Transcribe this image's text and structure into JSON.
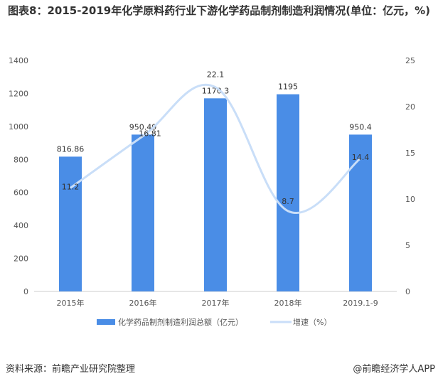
{
  "chart_data": {
    "type": "bar+line",
    "title": "图表8：2015-2019年化学原料药行业下游化学药品制剂制造利润情况(单位：亿元，%)",
    "categories": [
      "2015年",
      "2016年",
      "2017年",
      "2018年",
      "2019.1-9"
    ],
    "series": [
      {
        "name": "化学药品制剂制造利润总额（亿元）",
        "type": "bar",
        "axis": "left",
        "values": [
          816.86,
          950.49,
          1170.3,
          1195,
          950.4
        ],
        "labels": [
          "816.86",
          "950.49",
          "1170.3",
          "1195",
          "950.4"
        ],
        "color": "#4a8de6"
      },
      {
        "name": "增速（%）",
        "type": "line",
        "axis": "right",
        "values": [
          11.2,
          16.81,
          22.1,
          8.7,
          14.4
        ],
        "labels": [
          "11.2",
          "16.81",
          "22.1",
          "8.7",
          "14.4"
        ],
        "color": "#c9def8"
      }
    ],
    "y_left": {
      "range": [
        0,
        1400
      ],
      "ticks": [
        "0",
        "200",
        "400",
        "600",
        "800",
        "1000",
        "1200",
        "1400"
      ]
    },
    "y_right": {
      "range": [
        0,
        25
      ],
      "ticks": [
        "0",
        "5",
        "10",
        "15",
        "20",
        "25"
      ]
    },
    "grid": false,
    "legend": "bottom"
  },
  "footer": {
    "source": "资料来源：前瞻产业研究院整理",
    "credit": "@前瞻经济学人APP"
  }
}
